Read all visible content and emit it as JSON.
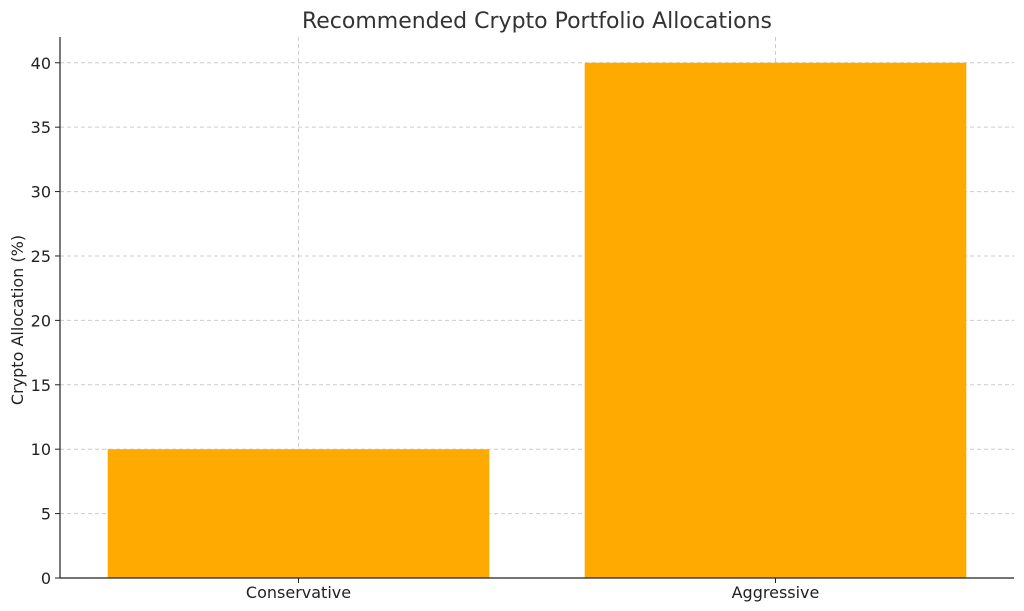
{
  "chart_data": {
    "type": "bar",
    "title": "Recommended Crypto Portfolio Allocations",
    "xlabel": "",
    "ylabel": "Crypto Allocation (%)",
    "categories": [
      "Conservative",
      "Aggressive"
    ],
    "values": [
      10,
      40
    ],
    "ylim": [
      0,
      42
    ],
    "yticks": [
      0,
      5,
      10,
      15,
      20,
      25,
      30,
      35,
      40
    ],
    "grid": true,
    "bar_color": "#FFAA00",
    "legend": "none"
  }
}
